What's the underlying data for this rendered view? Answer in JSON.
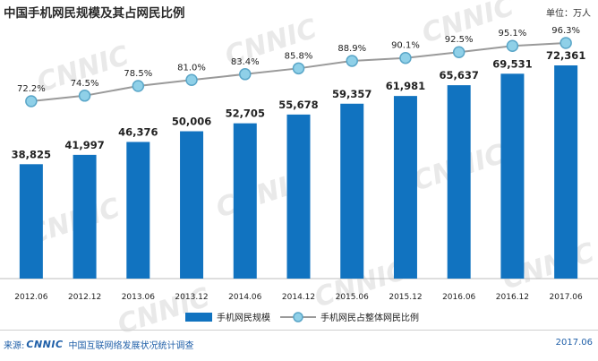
{
  "title": "中国手机网民规模及其占网民比例",
  "unit": "单位：万人",
  "footer": {
    "source_label": "来源:",
    "logo": "CNNIC",
    "org": "中国互联网络发展状况统计调查",
    "date": "2017.06"
  },
  "watermark": "CNNIC",
  "colors": {
    "bar": "#1173c0",
    "line": "#9a9a9a",
    "marker_fill": "#8fd0e8",
    "marker_stroke": "#5aa6c8"
  },
  "chart_data": {
    "type": "bar",
    "categories": [
      "2012.06",
      "2012.12",
      "2013.06",
      "2013.12",
      "2014.06",
      "2014.12",
      "2015.06",
      "2015.12",
      "2016.06",
      "2016.12",
      "2017.06"
    ],
    "series": [
      {
        "name": "手机网民规模",
        "type": "bar",
        "values": [
          38825,
          41997,
          46376,
          50006,
          52705,
          55678,
          59357,
          61981,
          65637,
          69531,
          72361
        ],
        "labels": [
          "38,825",
          "41,997",
          "46,376",
          "50,006",
          "52,705",
          "55,678",
          "59,357",
          "61,981",
          "65,637",
          "69,531",
          "72,361"
        ]
      },
      {
        "name": "手机网民占整体网民比例",
        "type": "line",
        "values": [
          72.2,
          74.5,
          78.5,
          81.0,
          83.4,
          85.8,
          88.9,
          90.1,
          92.5,
          95.1,
          96.3
        ],
        "labels": [
          "72.2%",
          "74.5%",
          "78.5%",
          "81.0%",
          "83.4%",
          "85.8%",
          "88.9%",
          "90.1%",
          "92.5%",
          "95.1%",
          "96.3%"
        ]
      }
    ],
    "legend_position": "bottom-center",
    "grid": false
  }
}
